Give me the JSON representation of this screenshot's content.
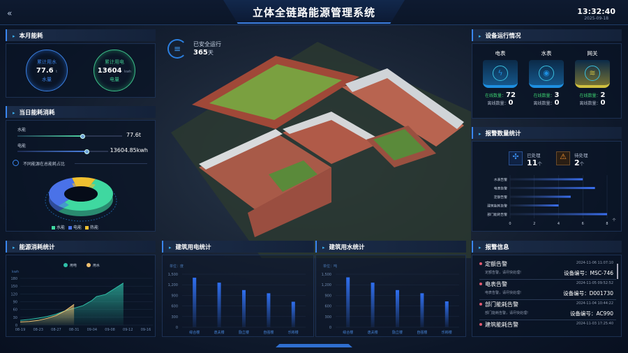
{
  "header": {
    "title": "立体全链路能源管理系统",
    "back_icon": "double-chevron-left-icon",
    "time": "13:32:40",
    "date": "2025-09-18"
  },
  "run": {
    "label": "已安全运行",
    "days": "365",
    "unit": "天",
    "icon": "database-icon"
  },
  "monthly": {
    "title": "本月能耗",
    "water": {
      "label": "累计用水",
      "value": "77.6",
      "unit": "t",
      "sub": "水量",
      "color": "#3a7fe0"
    },
    "power": {
      "label": "累计用电",
      "value": "13604",
      "unit": "kwh",
      "sub": "电量",
      "color": "#3cc08a"
    }
  },
  "daily": {
    "title": "当日能耗消耗",
    "water": {
      "label": "水能",
      "value": "77.6t",
      "level": 0.62
    },
    "power": {
      "label": "电能",
      "value": "13604.85kwh",
      "level": 0.76
    },
    "ratio_title": "不同能源在总能耗占比",
    "pie": [
      {
        "name": "水能",
        "value": 55,
        "color": "#3fd8a0"
      },
      {
        "name": "电能",
        "value": 33,
        "color": "#4a72e8"
      },
      {
        "name": "热能",
        "value": 12,
        "color": "#f0c030"
      }
    ]
  },
  "energy_chart": {
    "title": "能源消耗统计",
    "chart_data": {
      "type": "area",
      "ylabel": "kwh",
      "ylim": [
        0,
        180
      ],
      "yticks": [
        0,
        30,
        60,
        90,
        120,
        150,
        180
      ],
      "xticks": [
        "08-19",
        "08-23",
        "08-27",
        "08-31",
        "09-04",
        "09-08",
        "09-12",
        "09-16"
      ],
      "series": [
        {
          "name": "用电",
          "color": "#2fc0a8",
          "x": [
            "08-19",
            "08-21",
            "08-23",
            "08-25",
            "08-27",
            "08-29",
            "08-31",
            "09-02",
            "09-04",
            "09-05",
            "09-07",
            "09-09",
            "09-11"
          ],
          "values": [
            18,
            22,
            27,
            33,
            42,
            55,
            65,
            75,
            95,
            110,
            118,
            140,
            162
          ]
        },
        {
          "name": "用水",
          "color": "#f0c070",
          "x": [
            "08-19",
            "08-21",
            "08-23",
            "08-25",
            "08-27",
            "08-29",
            "08-31"
          ],
          "values": [
            12,
            14,
            18,
            26,
            37,
            55,
            80
          ]
        }
      ]
    }
  },
  "elec_build": {
    "title": "建筑用电统计",
    "chart_data": {
      "type": "bar",
      "unit_label": "单位：度",
      "ylim": [
        0,
        1500
      ],
      "yticks": [
        "0",
        "300",
        "600",
        "900",
        "1,200",
        "1,500"
      ],
      "categories": [
        "综合楼",
        "逸夫楼",
        "励立楼",
        "自强楼",
        "乐彬楼"
      ],
      "values": [
        1400,
        1260,
        1050,
        960,
        720
      ]
    }
  },
  "water_build": {
    "title": "建筑用水统计",
    "chart_data": {
      "type": "bar",
      "unit_label": "单位：吨",
      "ylim": [
        0,
        1500
      ],
      "yticks": [
        "0",
        "300",
        "600",
        "900",
        "1,200",
        "1,500"
      ],
      "categories": [
        "综合楼",
        "逸夫楼",
        "励立楼",
        "自强楼",
        "乐彬楼"
      ],
      "values": [
        1410,
        1260,
        1050,
        960,
        730
      ]
    }
  },
  "devices": {
    "title": "设备运行情况",
    "online_label": "在线数量：",
    "offline_label": "离线数量：",
    "items": [
      {
        "name": "电表",
        "online": "72",
        "offline": "0",
        "icon": "lightning-icon",
        "color": "#1e8fe0"
      },
      {
        "name": "水表",
        "online": "3",
        "offline": "0",
        "icon": "water-drop-icon",
        "color": "#1e8fe0"
      },
      {
        "name": "网关",
        "online": "2",
        "offline": "0",
        "icon": "wifi-icon",
        "color": "#d0c040"
      }
    ]
  },
  "alarm_stats": {
    "title": "报警数量统计",
    "handled": {
      "label": "已处理",
      "value": "11",
      "unit": "个"
    },
    "pending": {
      "label": "待处理",
      "value": "2",
      "unit": "个"
    },
    "chart_data": {
      "type": "bar",
      "orientation": "horizontal",
      "unit": "个",
      "xlim": [
        0,
        8
      ],
      "xticks": [
        "0",
        "2",
        "4",
        "6",
        "8"
      ],
      "categories": [
        "水表告警",
        "电表告警",
        "定额告警",
        "建筑能耗告警",
        "部门能耗告警"
      ],
      "values": [
        6,
        7,
        5,
        4,
        8
      ]
    }
  },
  "alarms": {
    "title": "报警信息",
    "id_label": "设备编号：",
    "items": [
      {
        "type": "定额告警",
        "time": "2024-11-06 11:07:10",
        "desc": "定额告警，请尽快处理!",
        "id": "MSC-746"
      },
      {
        "type": "电表告警",
        "time": "2024-11-05 09:52:52",
        "desc": "电表告警，请尽快处理!",
        "id": "D001730"
      },
      {
        "type": "部门能耗告警",
        "time": "2024-11-04 10:44:22",
        "desc": "部门能耗告警，请尽快处理!",
        "id": "AC990"
      },
      {
        "type": "建筑能耗告警",
        "time": "2024-11-03 17:25:40",
        "desc": "",
        "id": ""
      }
    ]
  }
}
